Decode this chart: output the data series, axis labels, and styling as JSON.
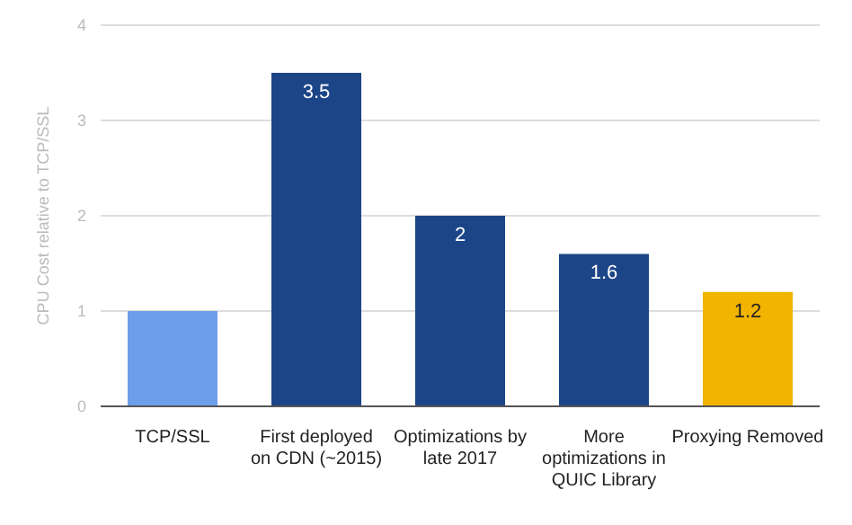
{
  "chart_data": {
    "type": "bar",
    "ylabel": "CPU Cost relative to TCP/SSL",
    "categories": [
      "TCP/SSL",
      "First deployed on CDN (~2015)",
      "Optimizations by late 2017",
      "More optimizations in QUIC Library",
      "Proxying Removed"
    ],
    "values": [
      1,
      3.5,
      2,
      1.6,
      1.2
    ],
    "colors": [
      "#6d9eeb",
      "#1c4587",
      "#1c4587",
      "#1c4587",
      "#f1b400"
    ],
    "value_labels": [
      null,
      "3.5",
      "2",
      "1.6",
      "1.2"
    ],
    "ylim": [
      0,
      4
    ],
    "yticks": [
      0,
      1,
      2,
      3,
      4
    ],
    "grid": "y",
    "legend": false
  }
}
